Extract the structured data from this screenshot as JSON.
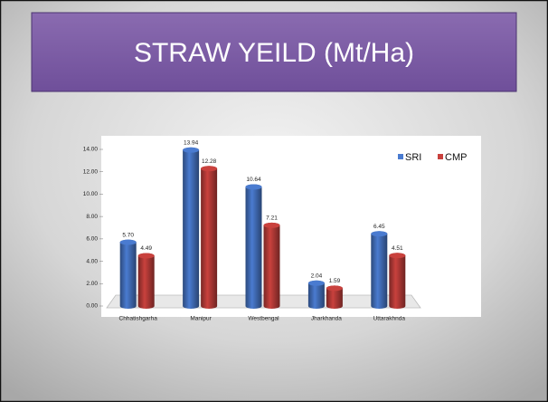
{
  "chart_data": {
    "type": "bar",
    "title": "STRAW YEILD (Mt/Ha)",
    "categories": [
      "Chhatishgarha",
      "Manipur",
      "Westbengal",
      "Jharkhanda",
      "Uttarakhnda"
    ],
    "series": [
      {
        "name": "SRI",
        "color": "#4a7bd0",
        "values": [
          5.7,
          13.94,
          10.64,
          2.04,
          6.45
        ],
        "value_labels": [
          "5.70",
          "13.94",
          "10.64",
          "2.04",
          "6.45"
        ]
      },
      {
        "name": "CMP",
        "color": "#c9413d",
        "values": [
          4.49,
          12.28,
          7.21,
          1.59,
          4.51
        ],
        "value_labels": [
          "4.49",
          "12.28",
          "7.21",
          "1.59",
          "4.51"
        ]
      }
    ],
    "ylim": [
      0,
      14
    ],
    "yticks": [
      {
        "value": 0,
        "label": "0.00"
      },
      {
        "value": 2,
        "label": "2.00"
      },
      {
        "value": 4,
        "label": "4.00"
      },
      {
        "value": 6,
        "label": "6.00"
      },
      {
        "value": 8,
        "label": "8.00"
      },
      {
        "value": 10,
        "label": "10.00"
      },
      {
        "value": 12,
        "label": "12.00"
      },
      {
        "value": 14,
        "label": "14.00"
      }
    ],
    "legend": "top-right"
  }
}
